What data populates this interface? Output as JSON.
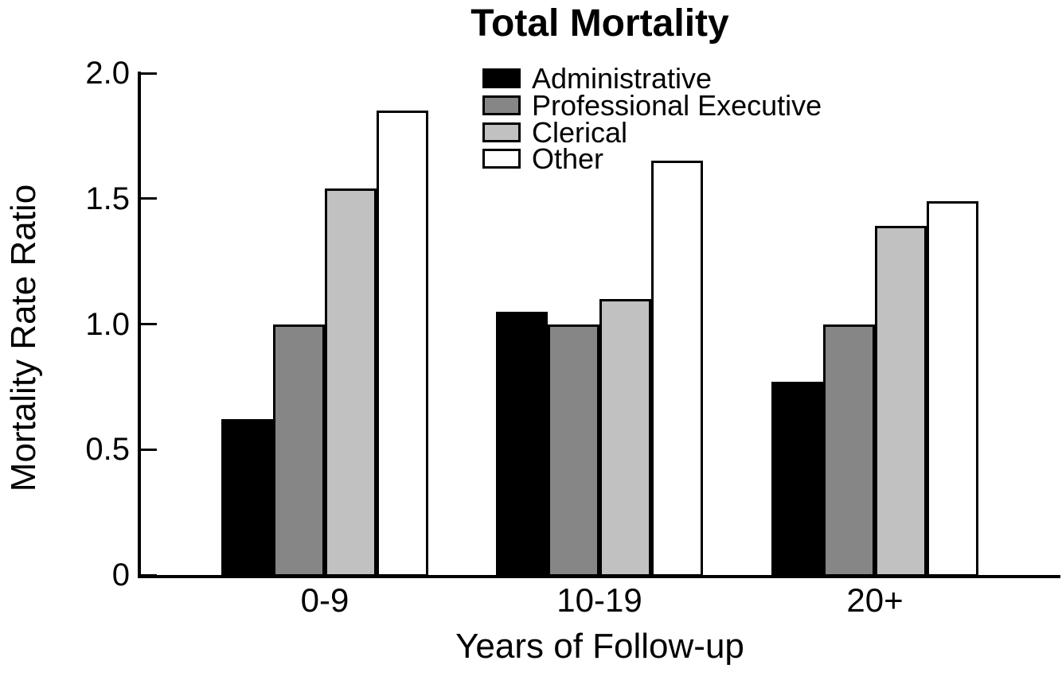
{
  "figure": {
    "title": "Total Mortality"
  },
  "chart_data": {
    "type": "bar",
    "title": "Total Mortality",
    "categories": [
      "0-9",
      "10-19",
      "20+"
    ],
    "series": [
      {
        "name": "Administrative",
        "color": "#000000",
        "values": [
          0.62,
          1.05,
          0.77
        ]
      },
      {
        "name": "Professional Executive",
        "color": "#868686",
        "values": [
          1.0,
          1.0,
          1.0
        ]
      },
      {
        "name": "Clerical",
        "color": "#c1c1c1",
        "values": [
          1.54,
          1.1,
          1.39
        ]
      },
      {
        "name": "Other",
        "color": "#ffffff",
        "values": [
          1.85,
          1.65,
          1.49
        ]
      }
    ],
    "xlabel": "Years of Follow-up",
    "ylabel": "Mortality Rate Ratio",
    "ylim": [
      0,
      2.0
    ],
    "yticks": [
      {
        "value": 0.0,
        "label": "0"
      },
      {
        "value": 0.5,
        "label": "0.5"
      },
      {
        "value": 1.0,
        "label": "1.0"
      },
      {
        "value": 1.5,
        "label": "1.5"
      },
      {
        "value": 2.0,
        "label": "2.0"
      }
    ],
    "legend_position": "top-center-inside",
    "grid": false,
    "bar_outline_color": "#000000",
    "background_color": "#ffffff"
  }
}
